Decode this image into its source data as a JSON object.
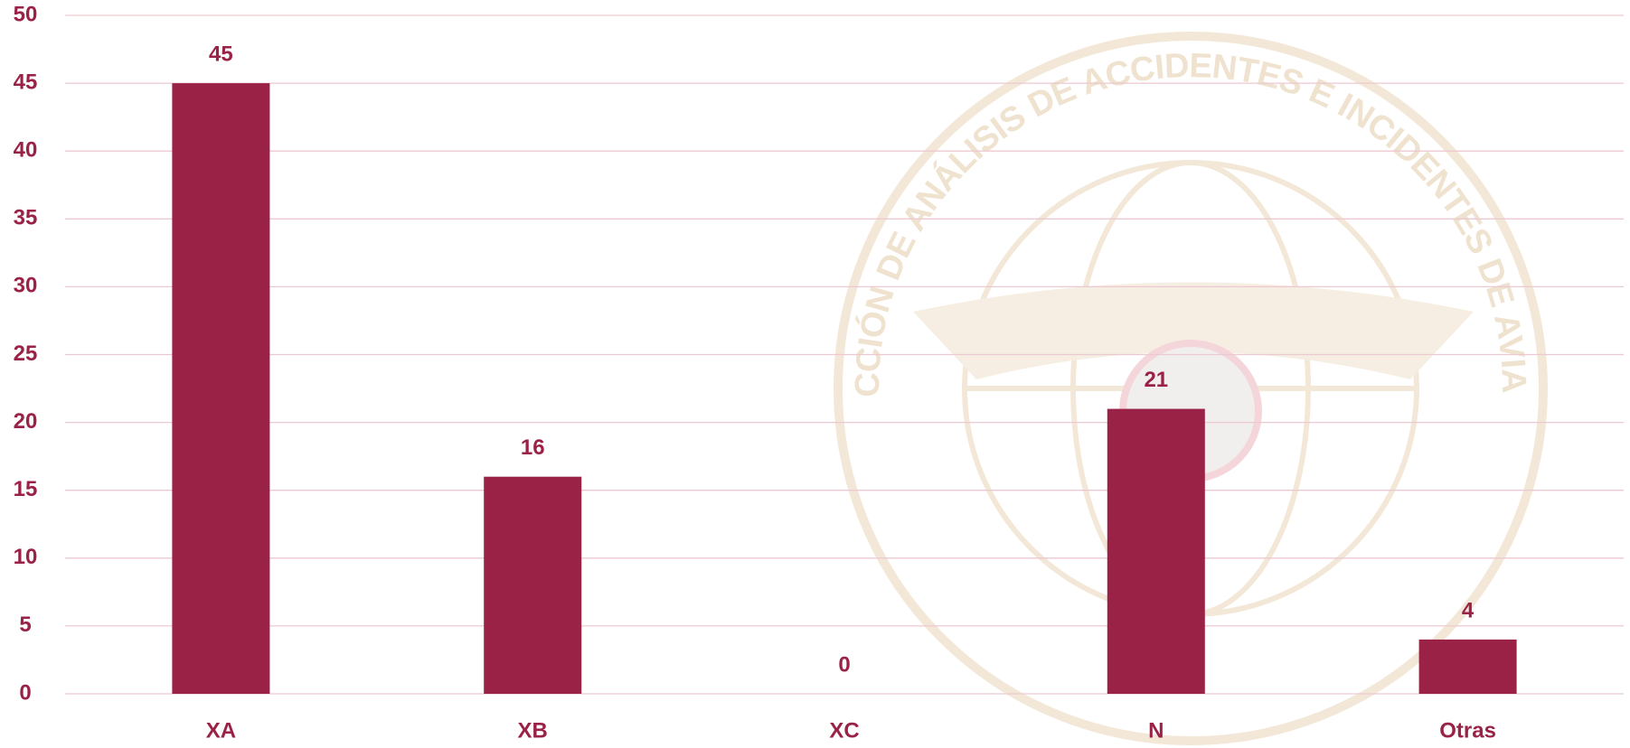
{
  "chart_data": {
    "type": "bar",
    "categories": [
      "XA",
      "XB",
      "XC",
      "N",
      "Otras"
    ],
    "values": [
      45,
      16,
      0,
      21,
      4
    ],
    "color": "#9b2247",
    "ylim": [
      0,
      50
    ],
    "yticks": [
      0,
      5,
      10,
      15,
      20,
      25,
      30,
      35,
      40,
      45,
      50
    ],
    "grid": true,
    "watermark": "DIRECCIÓN DE ANÁLISIS DE ACCIDENTES E INCIDENTES DE AVIACIÓN"
  }
}
